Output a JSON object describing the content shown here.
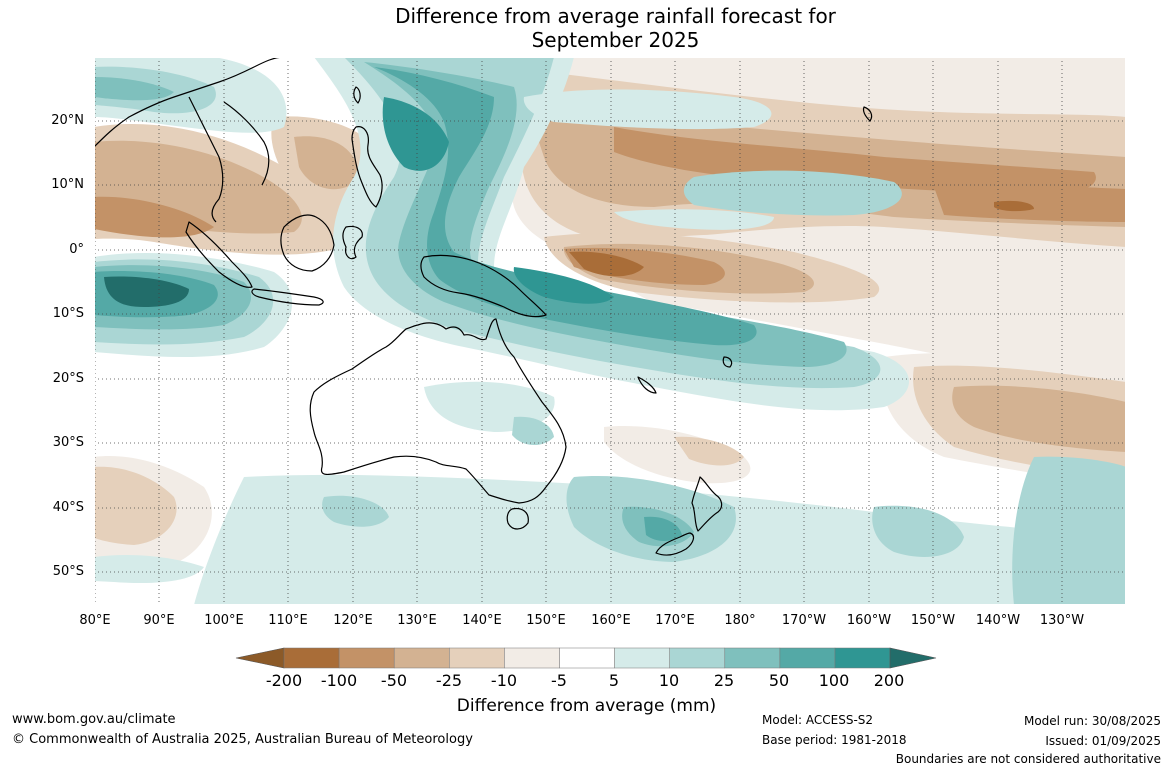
{
  "title": {
    "line1": "Difference from average rainfall forecast for",
    "line2": "September 2025"
  },
  "lat_labels": [
    "20°N",
    "10°N",
    "0°",
    "10°S",
    "20°S",
    "30°S",
    "40°S",
    "50°S"
  ],
  "lon_labels": [
    "80°E",
    "90°E",
    "100°E",
    "110°E",
    "120°E",
    "130°E",
    "140°E",
    "150°E",
    "160°E",
    "170°E",
    "180°",
    "170°W",
    "160°W",
    "150°W",
    "140°W",
    "130°W"
  ],
  "legend": {
    "ticks": [
      "-200",
      "-100",
      "-50",
      "-25",
      "-10",
      "-5",
      "5",
      "10",
      "25",
      "50",
      "100",
      "200"
    ],
    "colors": {
      "lt_-200": "#8c5a28",
      "b1": "#a96d38",
      "b2": "#c39267",
      "b3": "#d3b292",
      "b4": "#e5d0bb",
      "b5": "#f2ece6",
      "b6": "#ffffff",
      "b7": "#d5ebe9",
      "b8": "#aad6d4",
      "b9": "#7fc0bd",
      "b10": "#54a9a6",
      "b11": "#2f9693",
      "gt_200": "#226d6a"
    },
    "label": "Difference from average (mm)"
  },
  "footer": {
    "website": "www.bom.gov.au/climate",
    "copyright": "© Commonwealth of Australia 2025, Australian Bureau of Meteorology",
    "model": "Model: ACCESS-S2",
    "base_period": "Base period: 1981-2018",
    "model_run": "Model run: 30/08/2025",
    "issued": "Issued: 01/09/2025",
    "disclaimer": "Boundaries are not considered authoritative"
  }
}
